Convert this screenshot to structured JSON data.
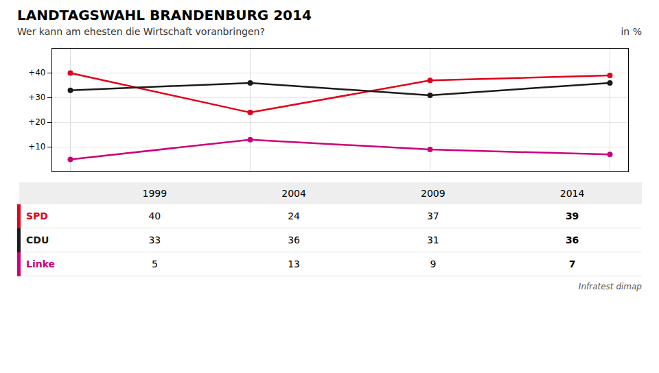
{
  "chart_data": {
    "type": "line",
    "title": "LANDTAGSWAHL BRANDENBURG 2014",
    "subtitle": "Wer kann am ehesten die Wirtschaft voranbringen?",
    "annotations": [
      "in %"
    ],
    "caption": "Infratest dimap",
    "categories": [
      "1999",
      "2004",
      "2009",
      "2014"
    ],
    "series": [
      {
        "name": "SPD",
        "color": "#e2001a",
        "values": [
          40,
          24,
          37,
          39
        ]
      },
      {
        "name": "CDU",
        "color": "#1a1a1a",
        "values": [
          33,
          36,
          31,
          36
        ]
      },
      {
        "name": "Linke",
        "color": "#cc007a",
        "values": [
          5,
          13,
          9,
          7
        ]
      }
    ],
    "ylim": [
      0,
      50
    ],
    "yticks": [
      {
        "value": 10,
        "label": "+10"
      },
      {
        "value": 20,
        "label": "+20"
      },
      {
        "value": 30,
        "label": "+30"
      },
      {
        "value": 40,
        "label": "+40"
      }
    ],
    "grid": true,
    "marker": "circle",
    "line_style": "solid",
    "tick_labels": "y"
  }
}
